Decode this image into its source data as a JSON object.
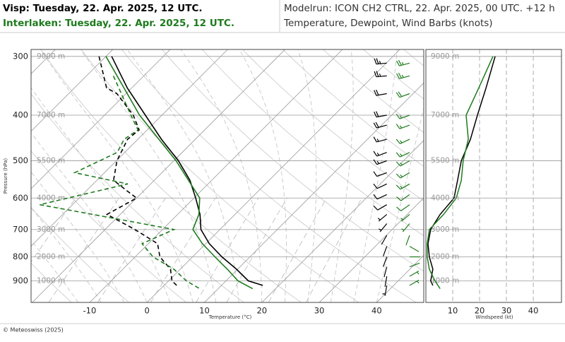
{
  "chart_data": [
    {
      "type": "skewt",
      "title": "Visp: Tuesday, 22. Apr. 2025, 12 UTC.",
      "subtitle": "Interlaken: Tuesday, 22. Apr. 2025, 12 UTC.",
      "model_run": "Modelrun: ICON CH2 CTRL, 22. Apr. 2025, 00 UTC. +12 h",
      "description": "Temperature, Dewpoint, Wind Barbs (knots)",
      "credit": "© Meteoswiss (2025)",
      "xlabel": "Temperature (°C)",
      "ylabel": "Pressure (hPa)",
      "xlim": [
        -20.2,
        48.2
      ],
      "ylim": [
        1000,
        290
      ],
      "log_y": true,
      "skew_deg": 45,
      "xticks": [
        -10,
        0,
        10,
        20,
        30,
        40
      ],
      "yticks": [
        300,
        400,
        500,
        600,
        700,
        800,
        900
      ],
      "height_labels": [
        {
          "value": 300,
          "label": "9000 m"
        },
        {
          "value": 400,
          "label": "7000 m"
        },
        {
          "value": 500,
          "label": "5500 m"
        },
        {
          "value": 600,
          "label": "4000 m"
        },
        {
          "value": 700,
          "label": "3000 m"
        },
        {
          "value": 800,
          "label": "2000 m"
        },
        {
          "value": 900,
          "label": "1000 m"
        }
      ],
      "series": [
        {
          "color": "#000000",
          "dashed": false,
          "pressure": [
            300,
            350,
            400,
            450,
            500,
            550,
            600,
            650,
            700,
            750,
            800,
            850,
            900,
            920
          ],
          "values": [
            -49.0,
            -40.8,
            -32.9,
            -25.9,
            -19.2,
            -13.8,
            -9.7,
            -6.1,
            -3.3,
            0.6,
            5.1,
            9.8,
            13.9,
            17.2
          ]
        },
        {
          "color": "#1e7b1e",
          "dashed": false,
          "pressure": [
            300,
            400,
            500,
            600,
            650,
            700,
            750,
            800,
            850,
            900,
            935
          ],
          "values": [
            -50.0,
            -33.9,
            -19.6,
            -9.0,
            -6.3,
            -4.7,
            -0.6,
            3.9,
            8.2,
            12.1,
            16.0
          ]
        },
        {
          "color": "#000000",
          "dashed": true,
          "pressure": [
            300,
            350,
            360,
            400,
            430,
            450,
            500,
            550,
            580,
            600,
            650,
            700,
            750,
            800,
            850,
            900,
            920
          ],
          "values": [
            -51.2,
            -44.4,
            -41.6,
            -35.0,
            -31.4,
            -31.8,
            -29.9,
            -27.1,
            -22.8,
            -20.0,
            -22.3,
            -14.8,
            -8.4,
            -5.7,
            -1.7,
            0.6,
            2.2
          ]
        },
        {
          "color": "#1e7b1e",
          "dashed": true,
          "pressure": [
            330,
            400,
            430,
            450,
            480,
            530,
            560,
            620,
            650,
            700,
            750,
            800,
            850,
            900,
            935
          ],
          "values": [
            -45.3,
            -35.4,
            -31.6,
            -32.4,
            -31.3,
            -35.2,
            -24.0,
            -35.7,
            -24.8,
            -8.0,
            -11.1,
            -6.9,
            -1.1,
            3.1,
            6.8
          ]
        }
      ],
      "winds": [
        {
          "color": "#000000",
          "pressure": [
            310,
            330,
            360,
            400,
            420,
            450,
            480,
            500,
            530,
            560,
            590,
            620,
            650,
            680,
            720,
            760,
            800,
            840,
            880,
            920
          ],
          "speed": [
            25,
            24,
            22,
            19,
            18,
            17,
            14,
            13,
            12,
            12,
            11,
            9,
            5,
            3,
            2,
            1,
            1,
            2,
            2,
            3
          ],
          "direction": [
            265,
            265,
            260,
            260,
            255,
            255,
            250,
            250,
            250,
            245,
            245,
            240,
            230,
            220,
            210,
            200,
            200,
            195,
            190,
            190
          ]
        },
        {
          "color": "#1e7b1e",
          "pressure": [
            310,
            330,
            360,
            400,
            420,
            450,
            480,
            500,
            530,
            560,
            590,
            620,
            650,
            680,
            720,
            760,
            800,
            840,
            880,
            920
          ],
          "speed": [
            25,
            23,
            19,
            15,
            15,
            16,
            15,
            14,
            13,
            13,
            12,
            10,
            7,
            4,
            1,
            1,
            1,
            1,
            3,
            4
          ],
          "direction": [
            255,
            255,
            250,
            250,
            250,
            245,
            245,
            240,
            240,
            240,
            235,
            235,
            230,
            220,
            200,
            120,
            90,
            70,
            60,
            60
          ]
        }
      ]
    },
    {
      "type": "line",
      "xlabel": "Windspeed (kt)",
      "xlim": [
        0,
        50.5
      ],
      "ylim": [
        1000,
        290
      ],
      "log_y": true,
      "xticks": [
        10,
        20,
        30,
        40
      ],
      "yticks": [
        300,
        400,
        500,
        600,
        700,
        800,
        900
      ],
      "series": [
        {
          "color": "#000000",
          "pressure": [
            300,
            350,
            400,
            450,
            500,
            550,
            600,
            650,
            700,
            750,
            800,
            850,
            900,
            920
          ],
          "values": [
            25.8,
            22.4,
            19.2,
            16.6,
            13.2,
            11.8,
            10.5,
            5.3,
            1.8,
            0.8,
            1.3,
            2.6,
            1.8,
            2.6
          ]
        },
        {
          "color": "#1e7b1e",
          "pressure": [
            300,
            350,
            400,
            450,
            500,
            550,
            600,
            650,
            700,
            750,
            800,
            850,
            900,
            935
          ],
          "values": [
            25.0,
            19.7,
            15.0,
            15.8,
            13.9,
            13.2,
            11.3,
            6.6,
            1.3,
            0.5,
            0.5,
            1.3,
            3.4,
            5.3
          ]
        }
      ]
    }
  ]
}
